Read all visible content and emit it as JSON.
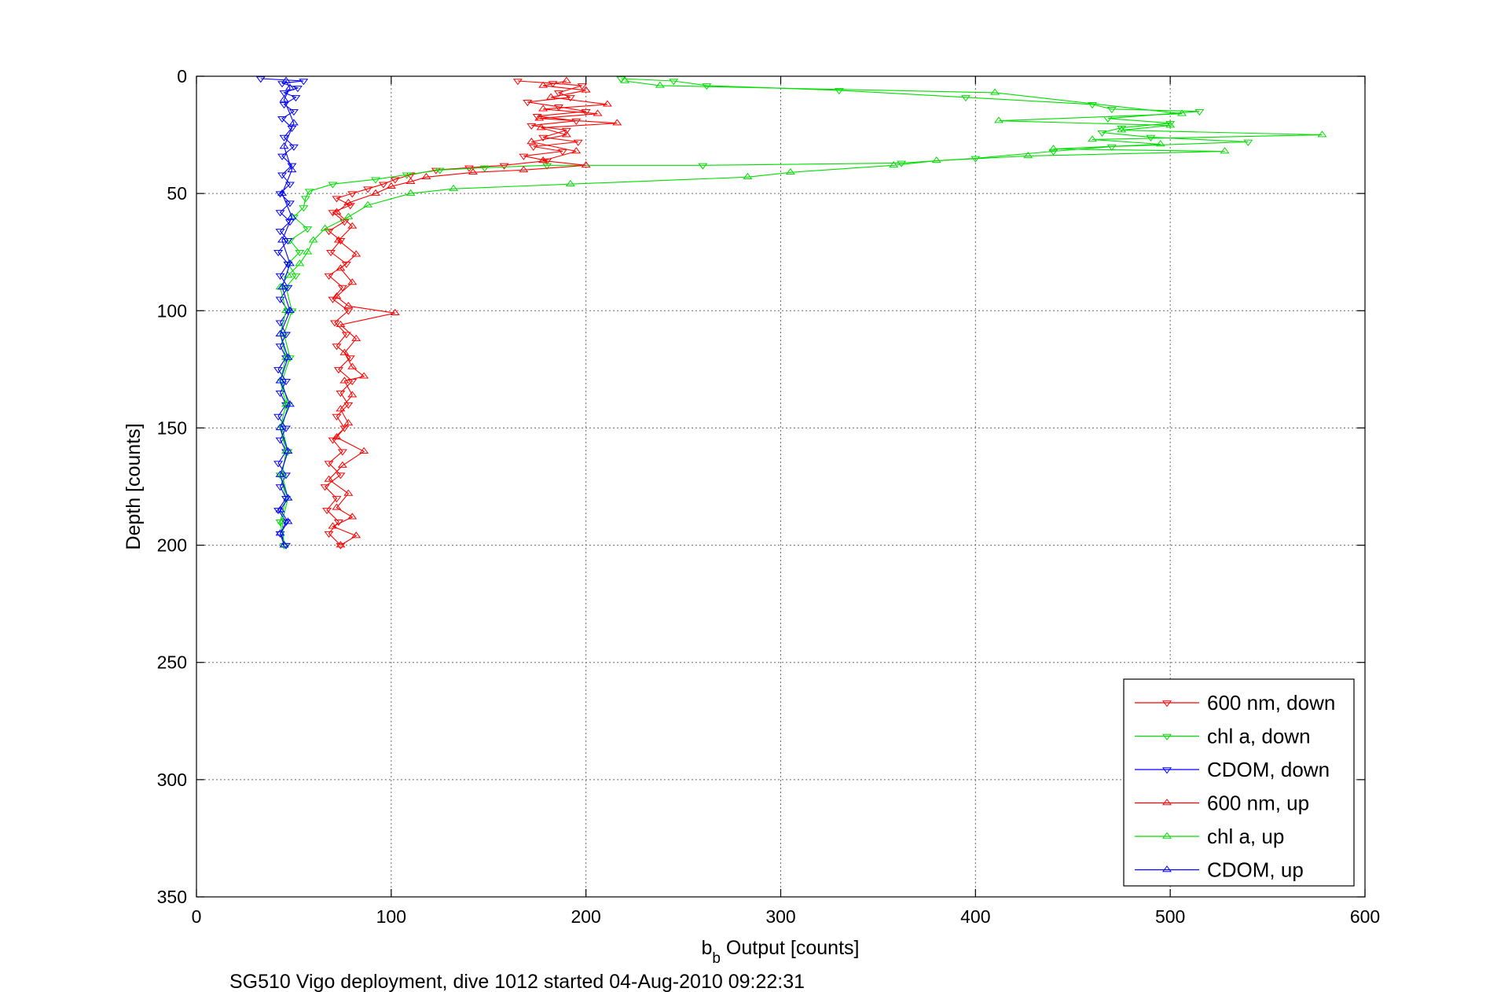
{
  "chart_data": {
    "type": "line",
    "title": "",
    "xlabel_main": "b",
    "xlabel_sub": "b",
    "xlabel_rest": " Output [counts]",
    "ylabel": "Depth [counts]",
    "caption": "SG510 Vigo deployment, dive 1012 started 04-Aug-2010 09:22:31",
    "xlim": [
      0,
      600
    ],
    "ylim": [
      0,
      350
    ],
    "y_reversed": true,
    "grid": true,
    "legend_position": "bottom-right",
    "x_ticks": [
      "0",
      "100",
      "200",
      "300",
      "400",
      "500",
      "600"
    ],
    "y_ticks": [
      "0",
      "50",
      "100",
      "150",
      "200",
      "250",
      "300",
      "350"
    ],
    "series": [
      {
        "name": "600 nm, down",
        "color": "#ff0000",
        "marker": "triangle-down",
        "points": [
          [
            165,
            2
          ],
          [
            183,
            3
          ],
          [
            198,
            4
          ],
          [
            186,
            7
          ],
          [
            192,
            9
          ],
          [
            170,
            11
          ],
          [
            186,
            13
          ],
          [
            200,
            15
          ],
          [
            175,
            17
          ],
          [
            195,
            19
          ],
          [
            172,
            21
          ],
          [
            190,
            23
          ],
          [
            178,
            26
          ],
          [
            196,
            28
          ],
          [
            173,
            30
          ],
          [
            188,
            32
          ],
          [
            168,
            34
          ],
          [
            180,
            36
          ],
          [
            158,
            38
          ],
          [
            140,
            39
          ],
          [
            123,
            40
          ],
          [
            110,
            42
          ],
          [
            102,
            44
          ],
          [
            96,
            46
          ],
          [
            88,
            48
          ],
          [
            80,
            50
          ],
          [
            72,
            52
          ],
          [
            79,
            55
          ],
          [
            70,
            58
          ],
          [
            76,
            62
          ],
          [
            68,
            66
          ],
          [
            74,
            70
          ],
          [
            69,
            75
          ],
          [
            77,
            80
          ],
          [
            68,
            85
          ],
          [
            75,
            90
          ],
          [
            70,
            95
          ],
          [
            78,
            100
          ],
          [
            71,
            105
          ],
          [
            77,
            110
          ],
          [
            72,
            115
          ],
          [
            79,
            120
          ],
          [
            73,
            125
          ],
          [
            80,
            130
          ],
          [
            74,
            135
          ],
          [
            78,
            140
          ],
          [
            72,
            145
          ],
          [
            76,
            150
          ],
          [
            70,
            155
          ],
          [
            75,
            160
          ],
          [
            68,
            165
          ],
          [
            74,
            170
          ],
          [
            66,
            175
          ],
          [
            72,
            180
          ],
          [
            67,
            185
          ],
          [
            73,
            190
          ],
          [
            68,
            195
          ],
          [
            74,
            200
          ]
        ]
      },
      {
        "name": "chl a, down",
        "color": "#00dd00",
        "marker": "triangle-down",
        "points": [
          [
            218,
            1
          ],
          [
            245,
            2
          ],
          [
            262,
            4
          ],
          [
            330,
            6
          ],
          [
            395,
            9
          ],
          [
            460,
            12
          ],
          [
            470,
            14
          ],
          [
            515,
            15
          ],
          [
            468,
            18
          ],
          [
            500,
            20
          ],
          [
            475,
            22
          ],
          [
            465,
            24
          ],
          [
            490,
            26
          ],
          [
            540,
            28
          ],
          [
            470,
            30
          ],
          [
            440,
            32
          ],
          [
            400,
            35
          ],
          [
            362,
            37
          ],
          [
            260,
            38
          ],
          [
            180,
            38
          ],
          [
            148,
            39
          ],
          [
            125,
            40
          ],
          [
            108,
            42
          ],
          [
            92,
            44
          ],
          [
            70,
            46
          ],
          [
            58,
            49
          ],
          [
            56,
            52
          ],
          [
            55,
            56
          ],
          [
            50,
            60
          ],
          [
            57,
            65
          ],
          [
            48,
            70
          ],
          [
            53,
            75
          ],
          [
            47,
            80
          ],
          [
            51,
            85
          ],
          [
            46,
            90
          ],
          [
            49,
            100
          ],
          [
            45,
            110
          ],
          [
            48,
            120
          ],
          [
            44,
            130
          ],
          [
            47,
            140
          ],
          [
            44,
            150
          ],
          [
            47,
            160
          ],
          [
            43,
            170
          ],
          [
            46,
            180
          ],
          [
            43,
            190
          ],
          [
            45,
            200
          ]
        ]
      },
      {
        "name": "CDOM, down",
        "color": "#0000ff",
        "marker": "triangle-down",
        "points": [
          [
            33,
            1
          ],
          [
            55,
            2
          ],
          [
            44,
            3
          ],
          [
            52,
            5
          ],
          [
            45,
            7
          ],
          [
            51,
            9
          ],
          [
            45,
            12
          ],
          [
            50,
            15
          ],
          [
            44,
            18
          ],
          [
            49,
            22
          ],
          [
            45,
            26
          ],
          [
            50,
            30
          ],
          [
            44,
            34
          ],
          [
            49,
            38
          ],
          [
            44,
            42
          ],
          [
            48,
            46
          ],
          [
            43,
            50
          ],
          [
            48,
            54
          ],
          [
            43,
            58
          ],
          [
            48,
            62
          ],
          [
            43,
            66
          ],
          [
            47,
            70
          ],
          [
            42,
            75
          ],
          [
            47,
            80
          ],
          [
            43,
            85
          ],
          [
            47,
            90
          ],
          [
            43,
            95
          ],
          [
            47,
            100
          ],
          [
            43,
            105
          ],
          [
            46,
            110
          ],
          [
            43,
            115
          ],
          [
            46,
            120
          ],
          [
            42,
            125
          ],
          [
            46,
            130
          ],
          [
            43,
            135
          ],
          [
            46,
            140
          ],
          [
            42,
            145
          ],
          [
            46,
            150
          ],
          [
            43,
            155
          ],
          [
            46,
            160
          ],
          [
            42,
            165
          ],
          [
            46,
            170
          ],
          [
            43,
            175
          ],
          [
            46,
            180
          ],
          [
            42,
            185
          ],
          [
            46,
            190
          ],
          [
            43,
            195
          ],
          [
            46,
            200
          ]
        ]
      },
      {
        "name": "600 nm, up",
        "color": "#ff0000",
        "marker": "triangle-up",
        "points": [
          [
            74,
            200
          ],
          [
            82,
            196
          ],
          [
            70,
            192
          ],
          [
            80,
            188
          ],
          [
            72,
            184
          ],
          [
            78,
            178
          ],
          [
            68,
            172
          ],
          [
            75,
            166
          ],
          [
            86,
            160
          ],
          [
            72,
            154
          ],
          [
            78,
            148
          ],
          [
            74,
            142
          ],
          [
            80,
            136
          ],
          [
            76,
            130
          ],
          [
            86,
            128
          ],
          [
            80,
            124
          ],
          [
            76,
            118
          ],
          [
            82,
            112
          ],
          [
            74,
            106
          ],
          [
            102,
            101
          ],
          [
            78,
            98
          ],
          [
            72,
            94
          ],
          [
            80,
            88
          ],
          [
            74,
            82
          ],
          [
            82,
            76
          ],
          [
            73,
            70
          ],
          [
            80,
            64
          ],
          [
            72,
            58
          ],
          [
            78,
            54
          ],
          [
            92,
            50
          ],
          [
            100,
            47
          ],
          [
            110,
            45
          ],
          [
            118,
            43
          ],
          [
            142,
            41
          ],
          [
            168,
            40
          ],
          [
            200,
            38
          ],
          [
            178,
            36
          ],
          [
            195,
            32
          ],
          [
            172,
            28
          ],
          [
            190,
            25
          ],
          [
            177,
            22
          ],
          [
            216,
            20
          ],
          [
            176,
            18
          ],
          [
            206,
            16
          ],
          [
            178,
            14
          ],
          [
            211,
            12
          ],
          [
            182,
            9
          ],
          [
            200,
            6
          ],
          [
            178,
            4
          ],
          [
            190,
            2
          ]
        ]
      },
      {
        "name": "chl a, up",
        "color": "#00dd00",
        "marker": "triangle-up",
        "points": [
          [
            45,
            200
          ],
          [
            44,
            190
          ],
          [
            47,
            180
          ],
          [
            44,
            170
          ],
          [
            46,
            160
          ],
          [
            43,
            150
          ],
          [
            46,
            140
          ],
          [
            43,
            130
          ],
          [
            46,
            120
          ],
          [
            43,
            110
          ],
          [
            46,
            100
          ],
          [
            43,
            90
          ],
          [
            47,
            85
          ],
          [
            53,
            80
          ],
          [
            57,
            75
          ],
          [
            60,
            70
          ],
          [
            66,
            65
          ],
          [
            78,
            60
          ],
          [
            88,
            55
          ],
          [
            110,
            50
          ],
          [
            132,
            48
          ],
          [
            192,
            46
          ],
          [
            283,
            43
          ],
          [
            305,
            41
          ],
          [
            358,
            38
          ],
          [
            380,
            36
          ],
          [
            427,
            34
          ],
          [
            528,
            32
          ],
          [
            440,
            31
          ],
          [
            495,
            29
          ],
          [
            460,
            27
          ],
          [
            578,
            25
          ],
          [
            475,
            23
          ],
          [
            500,
            21
          ],
          [
            412,
            19
          ],
          [
            506,
            16
          ],
          [
            410,
            7
          ],
          [
            238,
            4
          ],
          [
            220,
            2
          ]
        ]
      },
      {
        "name": "CDOM, up",
        "color": "#0000ff",
        "marker": "triangle-up",
        "points": [
          [
            45,
            200
          ],
          [
            43,
            195
          ],
          [
            47,
            190
          ],
          [
            43,
            185
          ],
          [
            47,
            180
          ],
          [
            43,
            170
          ],
          [
            47,
            160
          ],
          [
            43,
            150
          ],
          [
            48,
            140
          ],
          [
            43,
            130
          ],
          [
            47,
            120
          ],
          [
            43,
            110
          ],
          [
            48,
            100
          ],
          [
            44,
            90
          ],
          [
            48,
            80
          ],
          [
            44,
            70
          ],
          [
            49,
            60
          ],
          [
            44,
            50
          ],
          [
            49,
            40
          ],
          [
            45,
            30
          ],
          [
            50,
            20
          ],
          [
            45,
            10
          ],
          [
            48,
            5
          ],
          [
            46,
            2
          ]
        ]
      }
    ]
  }
}
